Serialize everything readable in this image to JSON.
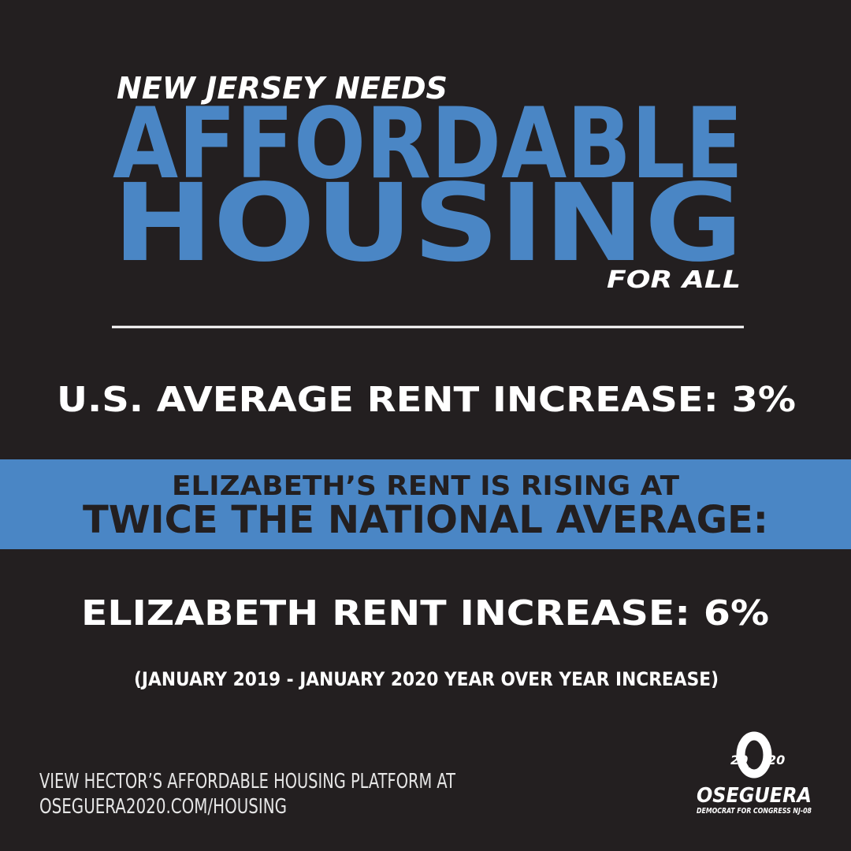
{
  "header": {
    "kicker": "NEW JERSEY NEEDS",
    "title_line1": "AFFORDABLE",
    "title_line2": "HOUSING",
    "tagline": "FOR ALL"
  },
  "stats": {
    "us": "U.S. AVERAGE RENT INCREASE: 3%",
    "elizabeth": "ELIZABETH RENT INCREASE: 6%"
  },
  "banner": {
    "line1": "ELIZABETH’S RENT IS RISING AT",
    "line2": "TWICE THE NATIONAL AVERAGE:"
  },
  "note": "(JANUARY 2019 - JANUARY 2020 YEAR OVER YEAR INCREASE)",
  "footer": {
    "cta_line1": "VIEW HECTOR’S AFFORDABLE HOUSING PLATFORM AT",
    "cta_line2": "OSEGUERA2020.COM/HOUSING"
  },
  "logo": {
    "year_left": "20",
    "year_right": "20",
    "name": "OSEGUERA",
    "subtitle": "DEMOCRAT FOR CONGRESS NJ-08"
  }
}
